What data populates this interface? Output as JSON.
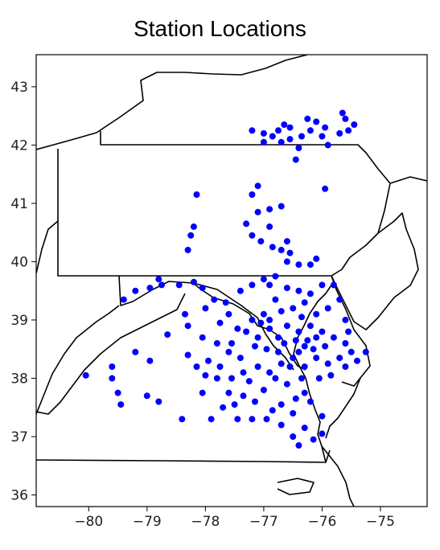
{
  "title": "Station Locations",
  "x_axis": {
    "ticks": [
      -80,
      -79,
      -78,
      -77,
      -76,
      -75
    ],
    "tick_labels": [
      "−80",
      "−79",
      "−78",
      "−77",
      "−76",
      "−75"
    ]
  },
  "y_axis": {
    "ticks": [
      36,
      37,
      38,
      39,
      40,
      41,
      42,
      43
    ],
    "tick_labels": [
      "36",
      "37",
      "38",
      "39",
      "40",
      "41",
      "42",
      "43"
    ]
  },
  "map_extent": {
    "lon": [
      -80.9,
      -74.2
    ],
    "lat": [
      35.8,
      43.55
    ]
  },
  "colors": {
    "station": "#0000ff",
    "border": "#000000"
  },
  "stations": [
    [
      -75.65,
      42.55
    ],
    [
      -75.6,
      42.45
    ],
    [
      -75.45,
      42.35
    ],
    [
      -75.55,
      42.25
    ],
    [
      -75.7,
      42.2
    ],
    [
      -75.95,
      42.3
    ],
    [
      -76.1,
      42.4
    ],
    [
      -76.25,
      42.45
    ],
    [
      -76.2,
      42.25
    ],
    [
      -76.0,
      42.15
    ],
    [
      -76.35,
      42.15
    ],
    [
      -76.55,
      42.3
    ],
    [
      -76.65,
      42.35
    ],
    [
      -76.75,
      42.25
    ],
    [
      -76.85,
      42.15
    ],
    [
      -77.0,
      42.2
    ],
    [
      -77.2,
      42.25
    ],
    [
      -76.4,
      41.95
    ],
    [
      -76.55,
      42.1
    ],
    [
      -76.7,
      42.05
    ],
    [
      -77.0,
      42.05
    ],
    [
      -75.9,
      42.0
    ],
    [
      -76.45,
      41.75
    ],
    [
      -75.95,
      41.25
    ],
    [
      -77.1,
      41.3
    ],
    [
      -77.2,
      41.15
    ],
    [
      -78.15,
      41.15
    ],
    [
      -76.7,
      40.95
    ],
    [
      -76.9,
      40.9
    ],
    [
      -77.3,
      40.65
    ],
    [
      -77.1,
      40.85
    ],
    [
      -76.9,
      40.6
    ],
    [
      -77.2,
      40.45
    ],
    [
      -78.2,
      40.6
    ],
    [
      -78.25,
      40.45
    ],
    [
      -78.3,
      40.2
    ],
    [
      -76.85,
      40.25
    ],
    [
      -77.05,
      40.35
    ],
    [
      -76.6,
      40.35
    ],
    [
      -76.7,
      40.2
    ],
    [
      -76.55,
      40.15
    ],
    [
      -76.6,
      40.0
    ],
    [
      -76.4,
      39.95
    ],
    [
      -76.1,
      40.05
    ],
    [
      -76.2,
      39.95
    ],
    [
      -76.8,
      39.75
    ],
    [
      -77.0,
      39.7
    ],
    [
      -78.8,
      39.7
    ],
    [
      -78.95,
      39.55
    ],
    [
      -79.2,
      39.5
    ],
    [
      -79.4,
      39.35
    ],
    [
      -78.75,
      39.6
    ],
    [
      -78.45,
      39.6
    ],
    [
      -78.2,
      39.65
    ],
    [
      -78.05,
      39.55
    ],
    [
      -77.85,
      39.35
    ],
    [
      -77.65,
      39.3
    ],
    [
      -77.4,
      39.5
    ],
    [
      -77.2,
      39.6
    ],
    [
      -76.9,
      39.6
    ],
    [
      -76.6,
      39.55
    ],
    [
      -76.4,
      39.5
    ],
    [
      -76.2,
      39.45
    ],
    [
      -76.0,
      39.6
    ],
    [
      -76.3,
      39.3
    ],
    [
      -76.5,
      39.2
    ],
    [
      -76.7,
      39.15
    ],
    [
      -76.8,
      39.35
    ],
    [
      -77.0,
      39.1
    ],
    [
      -77.2,
      39.0
    ],
    [
      -77.3,
      38.8
    ],
    [
      -77.1,
      38.7
    ],
    [
      -76.9,
      38.85
    ],
    [
      -76.6,
      38.9
    ],
    [
      -76.4,
      38.8
    ],
    [
      -76.2,
      38.9
    ],
    [
      -76.0,
      38.8
    ],
    [
      -75.8,
      38.7
    ],
    [
      -75.6,
      38.6
    ],
    [
      -75.5,
      38.45
    ],
    [
      -75.7,
      38.35
    ],
    [
      -75.9,
      38.25
    ],
    [
      -76.1,
      38.35
    ],
    [
      -76.3,
      38.2
    ],
    [
      -76.5,
      38.35
    ],
    [
      -76.7,
      38.25
    ],
    [
      -76.9,
      38.1
    ],
    [
      -77.1,
      38.2
    ],
    [
      -77.4,
      38.35
    ],
    [
      -77.6,
      38.45
    ],
    [
      -77.8,
      38.6
    ],
    [
      -78.05,
      38.7
    ],
    [
      -78.3,
      38.9
    ],
    [
      -78.65,
      38.75
    ],
    [
      -78.95,
      38.3
    ],
    [
      -79.2,
      38.45
    ],
    [
      -79.6,
      38.2
    ],
    [
      -80.05,
      38.05
    ],
    [
      -79.6,
      38.0
    ],
    [
      -79.5,
      37.75
    ],
    [
      -79.45,
      37.55
    ],
    [
      -79.0,
      37.7
    ],
    [
      -78.8,
      37.6
    ],
    [
      -78.4,
      37.3
    ],
    [
      -78.05,
      37.75
    ],
    [
      -78.0,
      38.05
    ],
    [
      -77.8,
      38.0
    ],
    [
      -77.6,
      37.75
    ],
    [
      -77.5,
      37.55
    ],
    [
      -77.45,
      37.3
    ],
    [
      -77.2,
      37.3
    ],
    [
      -76.95,
      37.3
    ],
    [
      -76.7,
      37.55
    ],
    [
      -76.5,
      37.4
    ],
    [
      -76.3,
      37.15
    ],
    [
      -76.15,
      36.95
    ],
    [
      -76.4,
      36.85
    ],
    [
      -76.5,
      37.0
    ],
    [
      -76.0,
      37.05
    ],
    [
      -76.0,
      37.35
    ],
    [
      -76.3,
      37.75
    ],
    [
      -76.6,
      37.9
    ],
    [
      -76.8,
      38.0
    ],
    [
      -77.0,
      37.8
    ],
    [
      -77.25,
      37.95
    ],
    [
      -77.35,
      38.1
    ],
    [
      -77.55,
      38.6
    ],
    [
      -76.35,
      39.05
    ],
    [
      -76.1,
      39.1
    ],
    [
      -75.9,
      39.2
    ],
    [
      -75.8,
      39.6
    ],
    [
      -75.7,
      39.35
    ],
    [
      -75.6,
      39.0
    ],
    [
      -75.55,
      38.8
    ],
    [
      -75.25,
      38.45
    ],
    [
      -75.4,
      38.3
    ],
    [
      -75.6,
      38.2
    ],
    [
      -75.85,
      38.05
    ],
    [
      -76.05,
      38.0
    ],
    [
      -76.3,
      38.55
    ],
    [
      -76.45,
      38.65
    ],
    [
      -76.65,
      38.6
    ],
    [
      -76.75,
      38.45
    ],
    [
      -76.95,
      38.5
    ],
    [
      -77.15,
      38.55
    ],
    [
      -77.45,
      38.85
    ],
    [
      -77.6,
      39.1
    ],
    [
      -77.75,
      38.95
    ],
    [
      -78.0,
      39.2
    ],
    [
      -78.35,
      39.1
    ],
    [
      -76.1,
      38.7
    ],
    [
      -75.95,
      38.55
    ],
    [
      -76.15,
      38.5
    ],
    [
      -76.25,
      38.65
    ],
    [
      -76.4,
      38.45
    ],
    [
      -76.55,
      38.2
    ],
    [
      -76.75,
      38.7
    ],
    [
      -76.9,
      39.0
    ],
    [
      -77.05,
      38.95
    ],
    [
      -76.35,
      38.0
    ],
    [
      -76.2,
      37.6
    ],
    [
      -76.45,
      37.65
    ],
    [
      -76.7,
      37.2
    ],
    [
      -76.85,
      37.45
    ],
    [
      -77.15,
      37.6
    ],
    [
      -77.35,
      37.7
    ],
    [
      -77.7,
      37.5
    ],
    [
      -77.9,
      37.3
    ],
    [
      -78.3,
      38.4
    ],
    [
      -78.15,
      38.2
    ],
    [
      -77.95,
      38.3
    ],
    [
      -77.75,
      38.2
    ],
    [
      -77.55,
      38.0
    ]
  ]
}
